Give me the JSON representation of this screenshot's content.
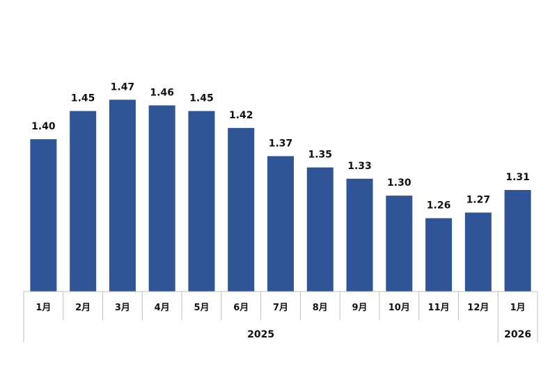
{
  "chart_data": {
    "type": "bar",
    "categories": [
      "1月",
      "2月",
      "3月",
      "4月",
      "5月",
      "6月",
      "7月",
      "8月",
      "9月",
      "10月",
      "11月",
      "12月",
      "1月"
    ],
    "values": [
      1.4,
      1.45,
      1.47,
      1.46,
      1.45,
      1.42,
      1.37,
      1.35,
      1.33,
      1.3,
      1.26,
      1.27,
      1.31
    ],
    "value_labels": [
      "1.40",
      "1.45",
      "1.47",
      "1.46",
      "1.45",
      "1.42",
      "1.37",
      "1.35",
      "1.33",
      "1.30",
      "1.26",
      "1.27",
      "1.31"
    ],
    "year_groups": [
      {
        "label": "2025",
        "count": 12
      },
      {
        "label": "2026",
        "count": 1
      }
    ],
    "title": "",
    "xlabel": "",
    "ylabel": "",
    "ylim": [
      1.13,
      1.5
    ],
    "grid": false,
    "legend": "none",
    "bar_color": "#2f5597",
    "axis_color": "#bfbfbf"
  }
}
